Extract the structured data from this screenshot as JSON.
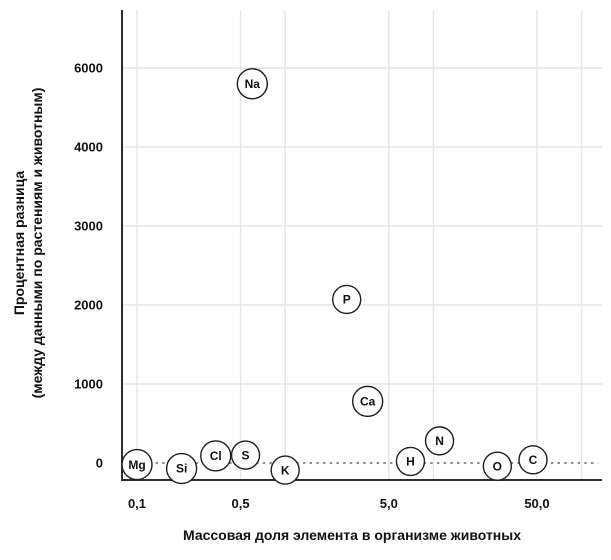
{
  "chart_data": {
    "type": "scatter",
    "title": "",
    "xlabel": "Массовая доля элемента в организме животных",
    "ylabel_lines": [
      "Процентная разница",
      "(между данными по растениям и животным)"
    ],
    "x_scale": "log",
    "x_range": [
      0.08,
      120
    ],
    "x_ticks": [
      {
        "value": 0.1,
        "label": "0,1"
      },
      {
        "value": 0.5,
        "label": "0,5"
      },
      {
        "value": 1,
        "label": ""
      },
      {
        "value": 5,
        "label": "5,0"
      },
      {
        "value": 10,
        "label": ""
      },
      {
        "value": 50,
        "label": "50,0"
      },
      {
        "value": 100,
        "label": ""
      }
    ],
    "y_ticks": [
      {
        "value": 0,
        "label": "0"
      },
      {
        "value": 1000,
        "label": "1000"
      },
      {
        "value": 2000,
        "label": "2000"
      },
      {
        "value": 3000,
        "label": "3000"
      },
      {
        "value": 4000,
        "label": "4000"
      },
      {
        "value": 6000,
        "label": "6000"
      }
    ],
    "y_note": "gridlines evenly spaced; top interval 4000-6000 spans one gridline step",
    "zero_line": {
      "value": 0,
      "style": "dotted"
    },
    "grid": true,
    "legend": "none",
    "points": [
      {
        "label": "Mg",
        "x": 0.1,
        "y": -20
      },
      {
        "label": "Si",
        "x": 0.2,
        "y": -70
      },
      {
        "label": "Cl",
        "x": 0.34,
        "y": 90
      },
      {
        "label": "S",
        "x": 0.54,
        "y": 100
      },
      {
        "label": "Na",
        "x": 0.6,
        "y": 5600
      },
      {
        "label": "K",
        "x": 1.0,
        "y": -90
      },
      {
        "label": "P",
        "x": 2.6,
        "y": 2070
      },
      {
        "label": "Ca",
        "x": 3.6,
        "y": 780
      },
      {
        "label": "H",
        "x": 7.0,
        "y": 20
      },
      {
        "label": "N",
        "x": 11,
        "y": 280
      },
      {
        "label": "O",
        "x": 27,
        "y": -40
      },
      {
        "label": "C",
        "x": 47,
        "y": 40
      }
    ],
    "style": {
      "background": "#ffffff",
      "grid_color": "#e6e6e6",
      "axis_color": "#2d2d2d",
      "zero_line_color": "#8f8f8f",
      "bubble_stroke": "#1f1f1f",
      "bubble_fill": "#ffffff",
      "text_color": "#111111"
    }
  }
}
